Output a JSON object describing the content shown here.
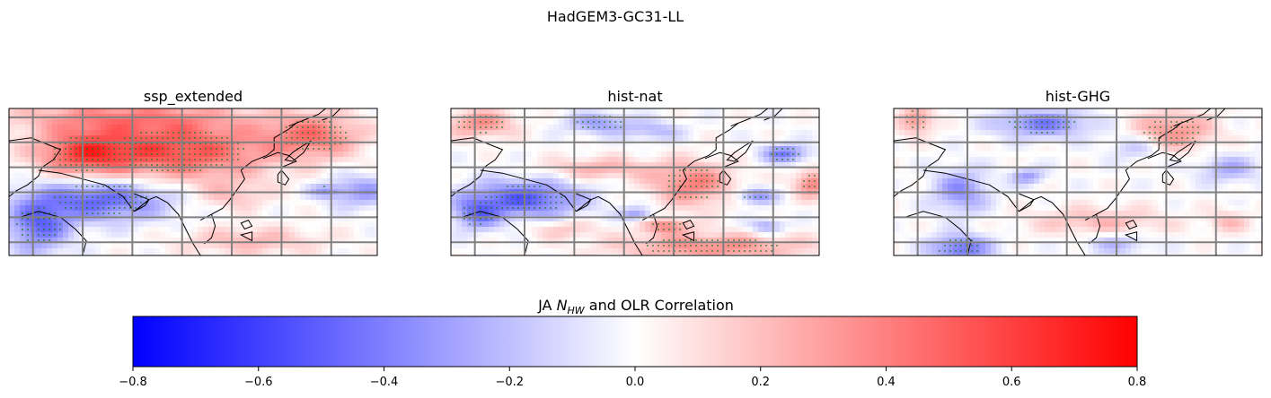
{
  "figure": {
    "suptitle": "HadGEM3-GC31-LL"
  },
  "colors": {
    "negative": "#0000ff",
    "neutral": "#ffffff",
    "positive": "#ff0000",
    "stipple": "#1a7a1a",
    "gridlines": "#808080",
    "coastline": "#000000"
  },
  "panels": [
    {
      "title": "ssp_extended"
    },
    {
      "title": "hist-nat"
    },
    {
      "title": "hist-GHG"
    }
  ],
  "colorbar": {
    "label_prefix": "JA ",
    "label_symbol": "N",
    "label_subscript": "HW",
    "label_suffix": " and OLR Correlation",
    "ticks": [
      "−0.8",
      "−0.6",
      "−0.4",
      "−0.2",
      "0.0",
      "0.2",
      "0.4",
      "0.6",
      "0.8"
    ]
  },
  "chart_data": {
    "type": "heatmap",
    "title": "HadGEM3-GC31-LL",
    "colorbar_label": "JA N_HW and OLR Correlation",
    "colormap": "bwr",
    "vmin": -0.8,
    "vmax": 0.8,
    "colorbar_ticks": [
      -0.8,
      -0.6,
      -0.4,
      -0.2,
      0.0,
      0.2,
      0.4,
      0.6,
      0.8
    ],
    "grid": true,
    "stippling": "significant correlation",
    "panels": [
      {
        "title": "ssp_extended",
        "regions": [
          {
            "cx": 0.45,
            "cy": 0.28,
            "rx": 0.28,
            "ry": 0.22,
            "v": 0.55,
            "sig": true
          },
          {
            "cx": 0.2,
            "cy": 0.3,
            "rx": 0.14,
            "ry": 0.18,
            "v": 0.45,
            "sig": true
          },
          {
            "cx": 0.82,
            "cy": 0.18,
            "rx": 0.14,
            "ry": 0.16,
            "v": 0.4,
            "sig": true
          },
          {
            "cx": 0.3,
            "cy": 0.05,
            "rx": 0.35,
            "ry": 0.12,
            "v": 0.3,
            "sig": false
          },
          {
            "cx": 0.25,
            "cy": 0.6,
            "rx": 0.2,
            "ry": 0.16,
            "v": -0.5,
            "sig": true
          },
          {
            "cx": 0.08,
            "cy": 0.78,
            "rx": 0.09,
            "ry": 0.2,
            "v": -0.45,
            "sig": true
          },
          {
            "cx": 0.95,
            "cy": 0.55,
            "rx": 0.1,
            "ry": 0.12,
            "v": -0.3,
            "sig": false
          },
          {
            "cx": 0.85,
            "cy": 0.55,
            "rx": 0.05,
            "ry": 0.05,
            "v": -0.25,
            "sig": true
          },
          {
            "cx": 0.65,
            "cy": 0.88,
            "rx": 0.2,
            "ry": 0.1,
            "v": 0.22,
            "sig": false
          },
          {
            "cx": 0.6,
            "cy": 0.58,
            "rx": 0.1,
            "ry": 0.1,
            "v": 0.18,
            "sig": false
          }
        ]
      },
      {
        "title": "hist-nat",
        "regions": [
          {
            "cx": 0.2,
            "cy": 0.6,
            "rx": 0.17,
            "ry": 0.14,
            "v": -0.5,
            "sig": true
          },
          {
            "cx": 0.07,
            "cy": 0.7,
            "rx": 0.07,
            "ry": 0.12,
            "v": -0.35,
            "sig": true
          },
          {
            "cx": 0.65,
            "cy": 0.5,
            "rx": 0.12,
            "ry": 0.16,
            "v": 0.4,
            "sig": true
          },
          {
            "cx": 0.4,
            "cy": 0.4,
            "rx": 0.16,
            "ry": 0.08,
            "v": 0.25,
            "sig": false
          },
          {
            "cx": 0.08,
            "cy": 0.1,
            "rx": 0.1,
            "ry": 0.1,
            "v": 0.35,
            "sig": true
          },
          {
            "cx": 0.7,
            "cy": 0.92,
            "rx": 0.28,
            "ry": 0.1,
            "v": 0.35,
            "sig": true
          },
          {
            "cx": 0.9,
            "cy": 0.3,
            "rx": 0.07,
            "ry": 0.07,
            "v": -0.4,
            "sig": true
          },
          {
            "cx": 0.97,
            "cy": 0.5,
            "rx": 0.05,
            "ry": 0.1,
            "v": 0.4,
            "sig": true
          },
          {
            "cx": 0.4,
            "cy": 0.1,
            "rx": 0.1,
            "ry": 0.08,
            "v": -0.3,
            "sig": true
          },
          {
            "cx": 0.55,
            "cy": 0.15,
            "rx": 0.08,
            "ry": 0.07,
            "v": -0.22,
            "sig": false
          },
          {
            "cx": 0.82,
            "cy": 0.58,
            "rx": 0.06,
            "ry": 0.06,
            "v": -0.35,
            "sig": true
          },
          {
            "cx": 0.5,
            "cy": 0.7,
            "rx": 0.05,
            "ry": 0.05,
            "v": -0.3,
            "sig": false
          },
          {
            "cx": 0.58,
            "cy": 0.78,
            "rx": 0.07,
            "ry": 0.06,
            "v": 0.35,
            "sig": true
          },
          {
            "cx": 0.85,
            "cy": 0.78,
            "rx": 0.05,
            "ry": 0.06,
            "v": -0.28,
            "sig": false
          },
          {
            "cx": 0.3,
            "cy": 0.8,
            "rx": 0.1,
            "ry": 0.07,
            "v": 0.18,
            "sig": false
          }
        ]
      },
      {
        "title": "hist-GHG",
        "regions": [
          {
            "cx": 0.4,
            "cy": 0.1,
            "rx": 0.14,
            "ry": 0.1,
            "v": -0.4,
            "sig": true
          },
          {
            "cx": 0.18,
            "cy": 0.55,
            "rx": 0.08,
            "ry": 0.16,
            "v": -0.35,
            "sig": false
          },
          {
            "cx": 0.06,
            "cy": 0.08,
            "rx": 0.05,
            "ry": 0.1,
            "v": 0.35,
            "sig": true
          },
          {
            "cx": 0.75,
            "cy": 0.15,
            "rx": 0.12,
            "ry": 0.14,
            "v": 0.35,
            "sig": true
          },
          {
            "cx": 0.9,
            "cy": 0.4,
            "rx": 0.09,
            "ry": 0.1,
            "v": -0.25,
            "sig": false
          },
          {
            "cx": 0.65,
            "cy": 0.25,
            "rx": 0.08,
            "ry": 0.1,
            "v": -0.2,
            "sig": false
          },
          {
            "cx": 0.55,
            "cy": 0.75,
            "rx": 0.2,
            "ry": 0.1,
            "v": 0.22,
            "sig": false
          },
          {
            "cx": 0.18,
            "cy": 0.93,
            "rx": 0.09,
            "ry": 0.1,
            "v": -0.45,
            "sig": true
          },
          {
            "cx": 0.36,
            "cy": 0.45,
            "rx": 0.05,
            "ry": 0.06,
            "v": -0.3,
            "sig": false
          },
          {
            "cx": 0.6,
            "cy": 0.9,
            "rx": 0.1,
            "ry": 0.08,
            "v": -0.2,
            "sig": false
          },
          {
            "cx": 0.9,
            "cy": 0.75,
            "rx": 0.06,
            "ry": 0.08,
            "v": 0.2,
            "sig": false
          }
        ]
      }
    ]
  }
}
